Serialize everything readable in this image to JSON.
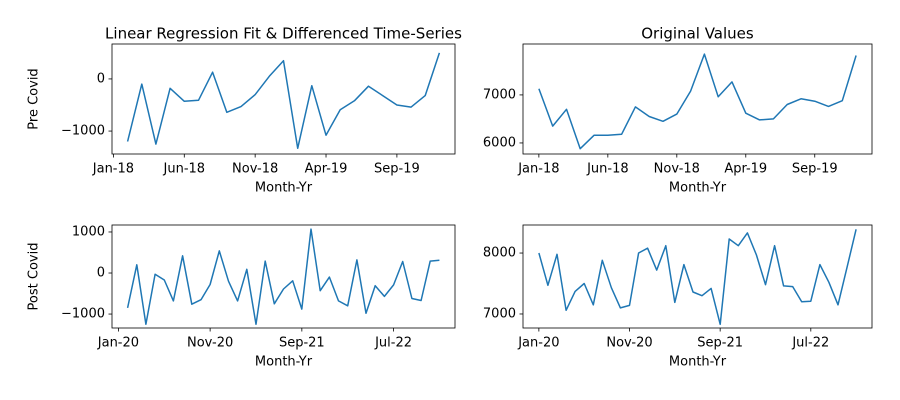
{
  "chart_data": [
    {
      "type": "line",
      "title": "Linear Regression Fit & Differenced Time-Series",
      "ylabel": "Pre Covid",
      "xlabel": "Month-Yr",
      "color": "#1f77b4",
      "x": [
        "Feb-18",
        "Mar-18",
        "Apr-18",
        "May-18",
        "Jun-18",
        "Jul-18",
        "Aug-18",
        "Sep-18",
        "Oct-18",
        "Nov-18",
        "Dec-18",
        "Jan-19",
        "Feb-19",
        "Mar-19",
        "Apr-19",
        "May-19",
        "Jun-19",
        "Jul-19",
        "Aug-19",
        "Sep-19",
        "Oct-19",
        "Nov-19",
        "Dec-19"
      ],
      "values": [
        -1200,
        -100,
        -1250,
        -180,
        -430,
        -410,
        130,
        -640,
        -530,
        -300,
        50,
        350,
        -1330,
        -130,
        -1080,
        -590,
        -420,
        -140,
        -320,
        -500,
        -540,
        -320,
        500
      ],
      "ylim": [
        -1440,
        670
      ],
      "yticks": [
        {
          "value": -1000,
          "label": "−1000"
        },
        0
      ],
      "xticks": [
        "Jan-18",
        "Jun-18",
        "Nov-18",
        "Apr-19",
        "Sep-19"
      ]
    },
    {
      "type": "line",
      "title": "Original Values",
      "xlabel": "Month-Yr",
      "color": "#1f77b4",
      "x": [
        "Jan-18",
        "Feb-18",
        "Mar-18",
        "Apr-18",
        "May-18",
        "Jun-18",
        "Jul-18",
        "Aug-18",
        "Sep-18",
        "Oct-18",
        "Nov-18",
        "Dec-18",
        "Jan-19",
        "Feb-19",
        "Mar-19",
        "Apr-19",
        "May-19",
        "Jun-19",
        "Jul-19",
        "Aug-19",
        "Sep-19",
        "Oct-19",
        "Nov-19",
        "Dec-19"
      ],
      "values": [
        7130,
        6350,
        6700,
        5880,
        6160,
        6160,
        6180,
        6750,
        6550,
        6450,
        6600,
        7080,
        7850,
        6960,
        7270,
        6620,
        6480,
        6500,
        6800,
        6920,
        6870,
        6760,
        6880,
        7820
      ],
      "ylim": [
        5770,
        8060
      ],
      "yticks": [
        6000,
        7000
      ],
      "xticks": [
        "Jan-18",
        "Jun-18",
        "Nov-18",
        "Apr-19",
        "Sep-19"
      ]
    },
    {
      "type": "line",
      "ylabel": "Post Covid",
      "xlabel": "Month-Yr",
      "color": "#1f77b4",
      "x": [
        "Feb-20",
        "Mar-20",
        "Apr-20",
        "May-20",
        "Jun-20",
        "Jul-20",
        "Aug-20",
        "Sep-20",
        "Oct-20",
        "Nov-20",
        "Dec-20",
        "Jan-21",
        "Feb-21",
        "Mar-21",
        "Apr-21",
        "May-21",
        "Jun-21",
        "Jul-21",
        "Aug-21",
        "Sep-21",
        "Oct-21",
        "Nov-21",
        "Dec-21",
        "Jan-22",
        "Feb-22",
        "Mar-22",
        "Apr-22",
        "May-22",
        "Jun-22",
        "Jul-22",
        "Aug-22",
        "Sep-22",
        "Oct-22",
        "Nov-22",
        "Dec-22"
      ],
      "values": [
        -850,
        200,
        -1250,
        -30,
        -170,
        -680,
        420,
        -760,
        -650,
        -280,
        540,
        -200,
        -680,
        90,
        -1250,
        290,
        -750,
        -390,
        -190,
        -880,
        1070,
        -430,
        -100,
        -680,
        -800,
        320,
        -980,
        -310,
        -570,
        -290,
        280,
        -620,
        -670,
        290,
        310
      ],
      "ylim": [
        -1340,
        1170
      ],
      "yticks": [
        {
          "value": -1000,
          "label": "−1000"
        },
        0,
        1000
      ],
      "xticks": [
        "Jan-20",
        "Nov-20",
        "Sep-21",
        "Jul-22"
      ]
    },
    {
      "type": "line",
      "xlabel": "Month-Yr",
      "color": "#1f77b4",
      "x": [
        "Jan-20",
        "Feb-20",
        "Mar-20",
        "Apr-20",
        "May-20",
        "Jun-20",
        "Jul-20",
        "Aug-20",
        "Sep-20",
        "Oct-20",
        "Nov-20",
        "Dec-20",
        "Jan-21",
        "Feb-21",
        "Mar-21",
        "Apr-21",
        "May-21",
        "Jun-21",
        "Jul-21",
        "Aug-21",
        "Sep-21",
        "Oct-21",
        "Nov-21",
        "Dec-21",
        "Jan-22",
        "Feb-22",
        "Mar-22",
        "Apr-22",
        "May-22",
        "Jun-22",
        "Jul-22",
        "Aug-22",
        "Sep-22",
        "Oct-22",
        "Nov-22",
        "Dec-22"
      ],
      "values": [
        8000,
        7470,
        7980,
        7060,
        7370,
        7500,
        7150,
        7880,
        7430,
        7100,
        7140,
        8000,
        8080,
        7720,
        8120,
        7190,
        7810,
        7360,
        7300,
        7420,
        6830,
        8230,
        8120,
        8330,
        7970,
        7480,
        8120,
        7460,
        7450,
        7200,
        7210,
        7810,
        7520,
        7150,
        7770,
        8390
      ],
      "ylim": [
        6770,
        8460
      ],
      "yticks": [
        7000,
        8000
      ],
      "xticks": [
        "Jan-20",
        "Nov-20",
        "Sep-21",
        "Jul-22"
      ]
    }
  ]
}
